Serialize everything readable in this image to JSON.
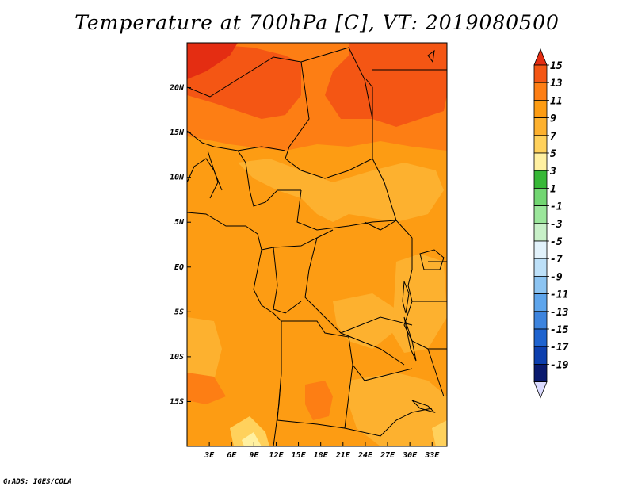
{
  "title": "Temperature at 700hPa [C], VT: 2019080500",
  "credit": "GrADS: IGES/COLA",
  "map": {
    "lon_range": [
      0,
      35
    ],
    "lat_range": [
      -20,
      25
    ],
    "lon_ticks": [
      {
        "value": 3,
        "label": "3E"
      },
      {
        "value": 6,
        "label": "6E"
      },
      {
        "value": 9,
        "label": "9E"
      },
      {
        "value": 12,
        "label": "12E"
      },
      {
        "value": 15,
        "label": "15E"
      },
      {
        "value": 18,
        "label": "18E"
      },
      {
        "value": 21,
        "label": "21E"
      },
      {
        "value": 24,
        "label": "24E"
      },
      {
        "value": 27,
        "label": "27E"
      },
      {
        "value": 30,
        "label": "30E"
      },
      {
        "value": 33,
        "label": "33E"
      }
    ],
    "lat_ticks": [
      {
        "value": 20,
        "label": "20N"
      },
      {
        "value": 15,
        "label": "15N"
      },
      {
        "value": 10,
        "label": "10N"
      },
      {
        "value": 5,
        "label": "5N"
      },
      {
        "value": 0,
        "label": "EQ"
      },
      {
        "value": -5,
        "label": "5S"
      },
      {
        "value": -10,
        "label": "10S"
      },
      {
        "value": -15,
        "label": "15S"
      }
    ]
  },
  "colorbar": {
    "labels": [
      "15",
      "13",
      "11",
      "9",
      "7",
      "5",
      "3",
      "1",
      "-1",
      "-3",
      "-5",
      "-7",
      "-9",
      "-11",
      "-13",
      "-15",
      "-17",
      "-19"
    ],
    "colors": [
      "#e42d12",
      "#f45614",
      "#fd7e14",
      "#fd9c13",
      "#fdb12f",
      "#ffd15c",
      "#fff0a1",
      "#37b837",
      "#72d672",
      "#9be69b",
      "#c8f0c8",
      "#e2f2fb",
      "#bde0f8",
      "#8cc4f2",
      "#5ea5ec",
      "#3d84de",
      "#1e63cf",
      "#0d3fae",
      "#0a1a6e",
      "#dbdbff"
    ]
  }
}
